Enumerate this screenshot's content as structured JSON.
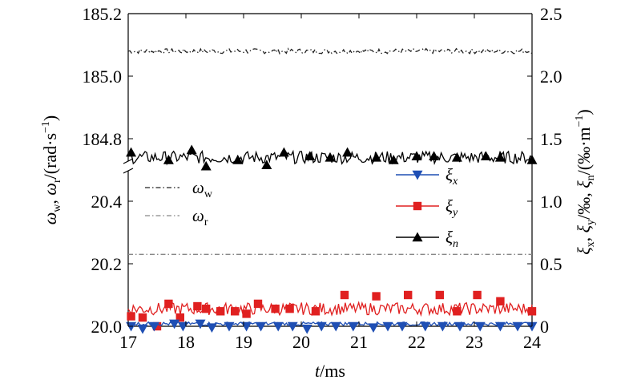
{
  "chart_data": {
    "type": "line",
    "xlabel": {
      "italic": "t",
      "unit": "/ms"
    },
    "x_range": [
      17,
      24
    ],
    "x_ticks": [
      "17",
      "18",
      "19",
      "20",
      "21",
      "22",
      "23",
      "24"
    ],
    "left_axis": {
      "upper_segment": {
        "ticks": [
          "185.2",
          "185.0",
          "184.8"
        ],
        "range": [
          184.7,
          185.2
        ]
      },
      "lower_segment": {
        "ticks": [
          "20.4",
          "20.2",
          "20.0"
        ],
        "range": [
          20.0,
          20.5
        ]
      },
      "label": {
        "w": "ω",
        "w_sub": "w",
        "sep": ", ",
        "r": "ω",
        "r_sub": "r",
        "unit": "/(rad·s",
        "exp": "−1",
        "close": ")"
      }
    },
    "right_axis": {
      "ticks": [
        "2.5",
        "2.0",
        "1.5",
        "1.0",
        "0.5",
        "0"
      ],
      "range": [
        0,
        2.5
      ],
      "label": {
        "x": "ξ",
        "x_sub": "x",
        "y": "ξ",
        "y_sub": "y",
        "n": "ξ",
        "n_sub": "n",
        "u1": "/‰, ",
        "u2": "/(‰·m",
        "exp": "−1",
        "close": ")"
      }
    },
    "legend_left": [
      {
        "sym": "ω",
        "sub": "w",
        "style": "dash-dot",
        "color": "#222222"
      },
      {
        "sym": "ω",
        "sub": "r",
        "style": "dash-dot",
        "color": "#888888"
      }
    ],
    "legend_right": [
      {
        "sym": "ξ",
        "sub": "x",
        "color": "#1f4fb4",
        "marker": "triangle-down"
      },
      {
        "sym": "ξ",
        "sub": "y",
        "color": "#e02020",
        "marker": "square"
      },
      {
        "sym": "ξ",
        "sub": "n",
        "color": "#000000",
        "marker": "triangle-up"
      }
    ],
    "series": [
      {
        "name": "ω_w",
        "axis": "left-upper",
        "style": "dash-dot",
        "color": "#222222",
        "x_range": [
          17,
          24
        ],
        "y_mean": 185.08,
        "y_noise": 0.008
      },
      {
        "name": "ω_r",
        "axis": "left-lower",
        "style": "dash-dot",
        "color": "#888888",
        "x_range": [
          17,
          24
        ],
        "y_mean": 20.23,
        "y_noise": 0
      },
      {
        "name": "ξ_n",
        "axis": "right",
        "color": "#000000",
        "marker": "triangle-up",
        "x_range": [
          17,
          24
        ],
        "y_mean": 1.35,
        "y_noise": 0.05,
        "markers": [
          [
            17.05,
            1.39
          ],
          [
            17.7,
            1.33
          ],
          [
            18.1,
            1.41
          ],
          [
            18.35,
            1.28
          ],
          [
            18.9,
            1.33
          ],
          [
            19.4,
            1.29
          ],
          [
            19.7,
            1.39
          ],
          [
            20.15,
            1.36
          ],
          [
            20.5,
            1.35
          ],
          [
            20.8,
            1.39
          ],
          [
            21.3,
            1.35
          ],
          [
            21.6,
            1.33
          ],
          [
            22.0,
            1.36
          ],
          [
            22.3,
            1.36
          ],
          [
            22.7,
            1.35
          ],
          [
            23.2,
            1.36
          ],
          [
            23.45,
            1.35
          ],
          [
            24.0,
            1.33
          ]
        ]
      },
      {
        "name": "ξ_y",
        "axis": "right",
        "color": "#e02020",
        "marker": "square",
        "x_range": [
          17,
          24
        ],
        "y_mean": 0.14,
        "y_noise": 0.05,
        "markers": [
          [
            17.05,
            0.08
          ],
          [
            17.25,
            0.07
          ],
          [
            17.5,
            0.0
          ],
          [
            17.7,
            0.18
          ],
          [
            17.9,
            0.07
          ],
          [
            18.2,
            0.16
          ],
          [
            18.35,
            0.14
          ],
          [
            18.6,
            0.12
          ],
          [
            18.85,
            0.12
          ],
          [
            19.05,
            0.1
          ],
          [
            19.25,
            0.18
          ],
          [
            19.55,
            0.14
          ],
          [
            19.8,
            0.14
          ],
          [
            20.25,
            0.12
          ],
          [
            20.75,
            0.25
          ],
          [
            21.3,
            0.24
          ],
          [
            21.85,
            0.25
          ],
          [
            22.4,
            0.25
          ],
          [
            22.7,
            0.12
          ],
          [
            23.05,
            0.25
          ],
          [
            23.45,
            0.2
          ],
          [
            24.0,
            0.12
          ]
        ]
      },
      {
        "name": "ξ_x",
        "axis": "right",
        "color": "#1f4fb4",
        "marker": "triangle-down",
        "x_range": [
          17,
          24
        ],
        "y_mean": 0.02,
        "y_noise": 0.015,
        "markers": [
          [
            17.05,
            0.0
          ],
          [
            17.25,
            -0.02
          ],
          [
            17.45,
            0.0
          ],
          [
            17.8,
            0.02
          ],
          [
            17.95,
            0.0
          ],
          [
            18.25,
            0.02
          ],
          [
            18.45,
            -0.01
          ],
          [
            18.75,
            0.0
          ],
          [
            19.05,
            0.0
          ],
          [
            19.3,
            0.0
          ],
          [
            19.6,
            0.0
          ],
          [
            19.85,
            0.0
          ],
          [
            20.1,
            -0.02
          ],
          [
            20.35,
            0.0
          ],
          [
            20.6,
            0.0
          ],
          [
            20.9,
            0.0
          ],
          [
            21.25,
            -0.01
          ],
          [
            21.5,
            0.0
          ],
          [
            21.75,
            0.0
          ],
          [
            22.15,
            0.0
          ],
          [
            22.45,
            0.0
          ],
          [
            22.75,
            0.0
          ],
          [
            23.1,
            0.0
          ],
          [
            23.45,
            0.0
          ],
          [
            23.75,
            0.0
          ],
          [
            24.0,
            0.0
          ]
        ]
      }
    ]
  }
}
